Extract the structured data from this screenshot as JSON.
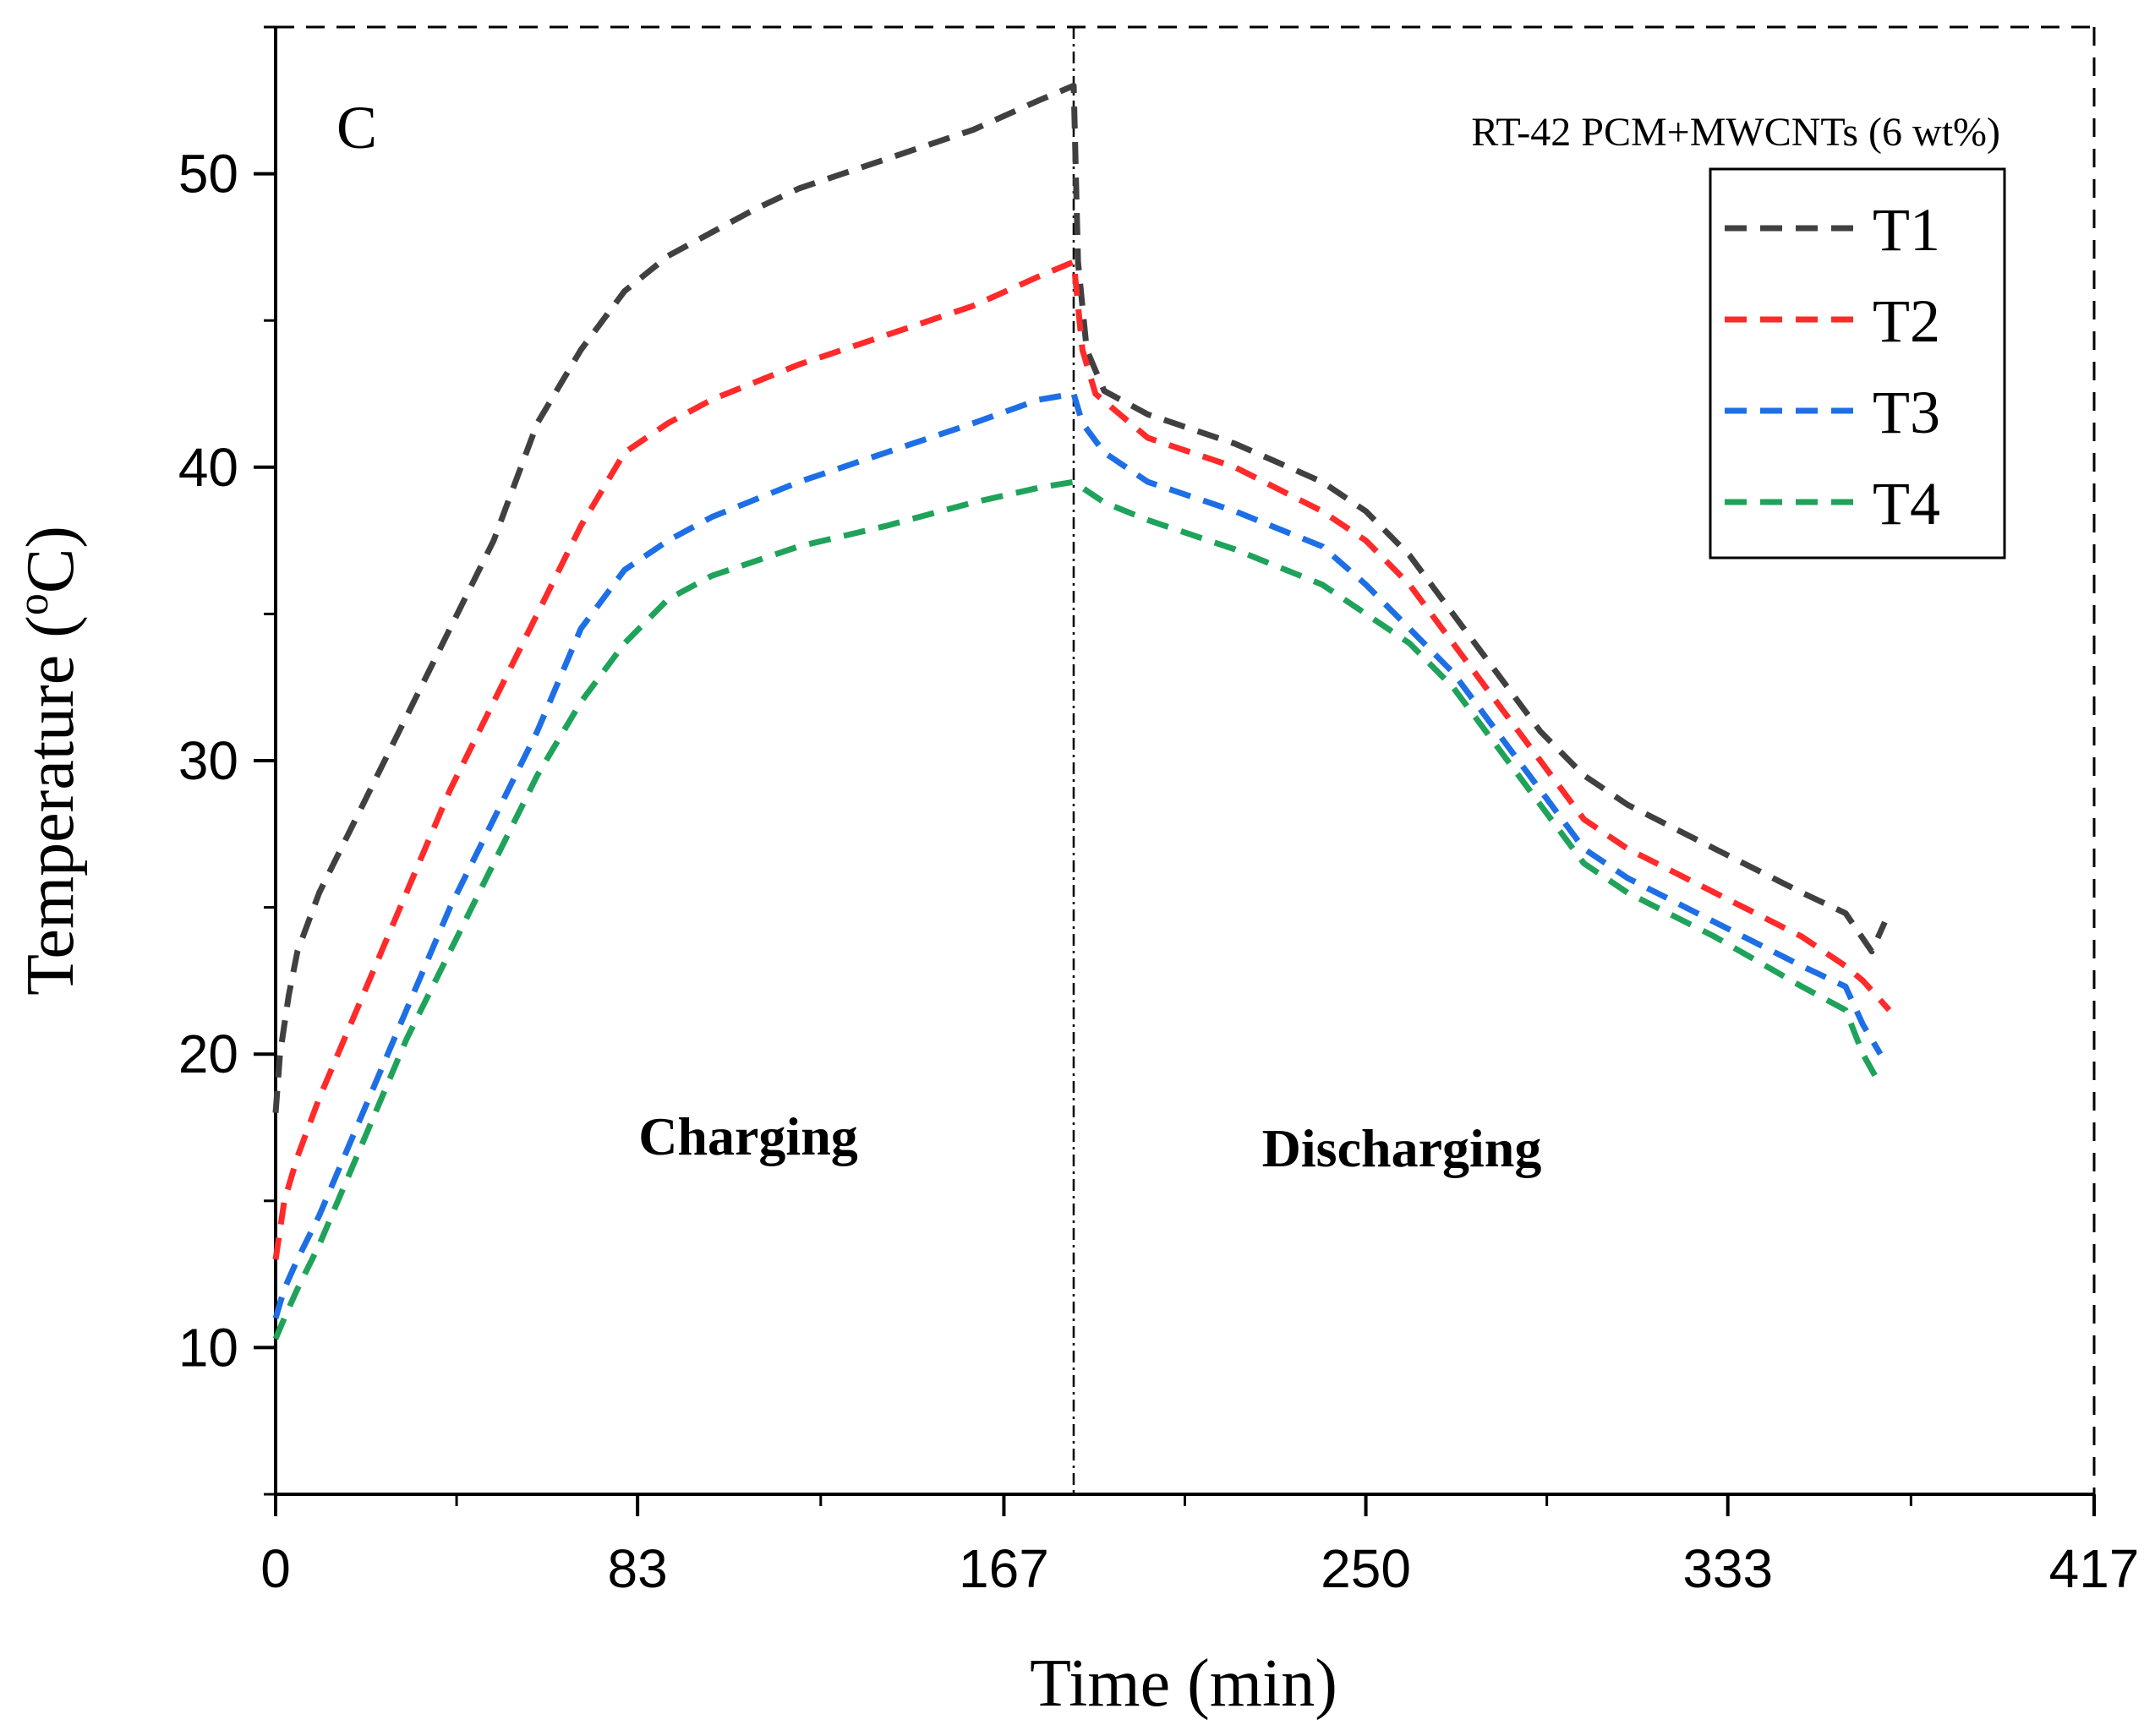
{
  "chart_data": {
    "type": "line",
    "panel_label": "C",
    "annotation": "RT-42 PCM+MWCNTs (6 wt%)",
    "phase_labels": {
      "left": "Charging",
      "right": "Discharging"
    },
    "xlabel": "Time (min)",
    "ylabel_main": "Temperature (",
    "ylabel_sup": "o",
    "ylabel_tail": "C)",
    "xlim": [
      0,
      417
    ],
    "ylim": [
      5,
      55
    ],
    "xticks": [
      0,
      83,
      167,
      250,
      333,
      417
    ],
    "yticks": [
      10,
      20,
      30,
      40,
      50
    ],
    "divider_x": 183,
    "grid": false,
    "legend_position": "top-right",
    "line_style": "dashed",
    "series": [
      {
        "name": "T1",
        "color": "#404040",
        "points": [
          [
            0,
            18
          ],
          [
            1,
            20
          ],
          [
            3,
            22
          ],
          [
            5,
            23.5
          ],
          [
            10,
            25.5
          ],
          [
            20,
            28.5
          ],
          [
            30,
            31.5
          ],
          [
            40,
            34.5
          ],
          [
            50,
            37.5
          ],
          [
            60,
            41.5
          ],
          [
            70,
            44
          ],
          [
            80,
            46
          ],
          [
            90,
            47.2
          ],
          [
            100,
            48
          ],
          [
            110,
            48.8
          ],
          [
            120,
            49.5
          ],
          [
            140,
            50.5
          ],
          [
            160,
            51.5
          ],
          [
            175,
            52.5
          ],
          [
            183,
            53
          ],
          [
            184,
            47
          ],
          [
            186,
            44
          ],
          [
            190,
            42.6
          ],
          [
            200,
            41.8
          ],
          [
            220,
            40.8
          ],
          [
            240,
            39.5
          ],
          [
            250,
            38.5
          ],
          [
            260,
            37
          ],
          [
            270,
            35
          ],
          [
            280,
            33
          ],
          [
            290,
            31
          ],
          [
            300,
            29.5
          ],
          [
            310,
            28.5
          ],
          [
            330,
            27
          ],
          [
            350,
            25.5
          ],
          [
            360,
            24.8
          ],
          [
            366,
            23.5
          ],
          [
            369,
            24.5
          ]
        ]
      },
      {
        "name": "T2",
        "color": "#ff2a2a",
        "points": [
          [
            0,
            13
          ],
          [
            2,
            15
          ],
          [
            5,
            16.5
          ],
          [
            10,
            18.5
          ],
          [
            20,
            22
          ],
          [
            30,
            25.5
          ],
          [
            40,
            29
          ],
          [
            50,
            32
          ],
          [
            60,
            35
          ],
          [
            70,
            38
          ],
          [
            80,
            40.5
          ],
          [
            90,
            41.5
          ],
          [
            100,
            42.3
          ],
          [
            120,
            43.5
          ],
          [
            140,
            44.5
          ],
          [
            160,
            45.5
          ],
          [
            175,
            46.5
          ],
          [
            183,
            47
          ],
          [
            185,
            44
          ],
          [
            188,
            42.5
          ],
          [
            200,
            41
          ],
          [
            220,
            40
          ],
          [
            240,
            38.5
          ],
          [
            250,
            37.5
          ],
          [
            260,
            36
          ],
          [
            270,
            34
          ],
          [
            280,
            32
          ],
          [
            290,
            30
          ],
          [
            300,
            28
          ],
          [
            310,
            27
          ],
          [
            330,
            25.5
          ],
          [
            350,
            24
          ],
          [
            360,
            23
          ],
          [
            364,
            22.5
          ],
          [
            370,
            21.5
          ]
        ]
      },
      {
        "name": "T3",
        "color": "#1e6fe6",
        "points": [
          [
            0,
            11
          ],
          [
            2,
            12
          ],
          [
            5,
            13
          ],
          [
            10,
            14.5
          ],
          [
            20,
            18
          ],
          [
            30,
            21.5
          ],
          [
            40,
            25
          ],
          [
            50,
            28
          ],
          [
            60,
            31
          ],
          [
            70,
            34.5
          ],
          [
            80,
            36.5
          ],
          [
            90,
            37.5
          ],
          [
            100,
            38.3
          ],
          [
            120,
            39.5
          ],
          [
            140,
            40.5
          ],
          [
            160,
            41.5
          ],
          [
            175,
            42.3
          ],
          [
            183,
            42.5
          ],
          [
            185,
            41.5
          ],
          [
            190,
            40.5
          ],
          [
            200,
            39.5
          ],
          [
            220,
            38.5
          ],
          [
            240,
            37.3
          ],
          [
            250,
            36
          ],
          [
            260,
            34.5
          ],
          [
            270,
            33
          ],
          [
            280,
            31
          ],
          [
            290,
            29
          ],
          [
            300,
            27
          ],
          [
            310,
            26
          ],
          [
            330,
            24.5
          ],
          [
            350,
            23
          ],
          [
            360,
            22.3
          ],
          [
            364,
            21
          ],
          [
            368,
            20
          ]
        ]
      },
      {
        "name": "T4",
        "color": "#1fa35a",
        "points": [
          [
            0,
            10.3
          ],
          [
            2,
            11
          ],
          [
            5,
            12
          ],
          [
            10,
            13.5
          ],
          [
            20,
            17
          ],
          [
            30,
            20.5
          ],
          [
            40,
            23.5
          ],
          [
            50,
            26.5
          ],
          [
            60,
            29.5
          ],
          [
            70,
            32
          ],
          [
            80,
            34
          ],
          [
            90,
            35.5
          ],
          [
            100,
            36.3
          ],
          [
            120,
            37.3
          ],
          [
            140,
            38
          ],
          [
            160,
            38.8
          ],
          [
            175,
            39.3
          ],
          [
            183,
            39.5
          ],
          [
            190,
            38.8
          ],
          [
            200,
            38.2
          ],
          [
            220,
            37.2
          ],
          [
            240,
            36
          ],
          [
            250,
            35
          ],
          [
            260,
            34
          ],
          [
            270,
            32.5
          ],
          [
            280,
            30.5
          ],
          [
            290,
            28.5
          ],
          [
            300,
            26.5
          ],
          [
            310,
            25.5
          ],
          [
            330,
            24
          ],
          [
            350,
            22.3
          ],
          [
            360,
            21.5
          ],
          [
            364,
            20
          ],
          [
            367,
            19.2
          ]
        ]
      }
    ]
  }
}
